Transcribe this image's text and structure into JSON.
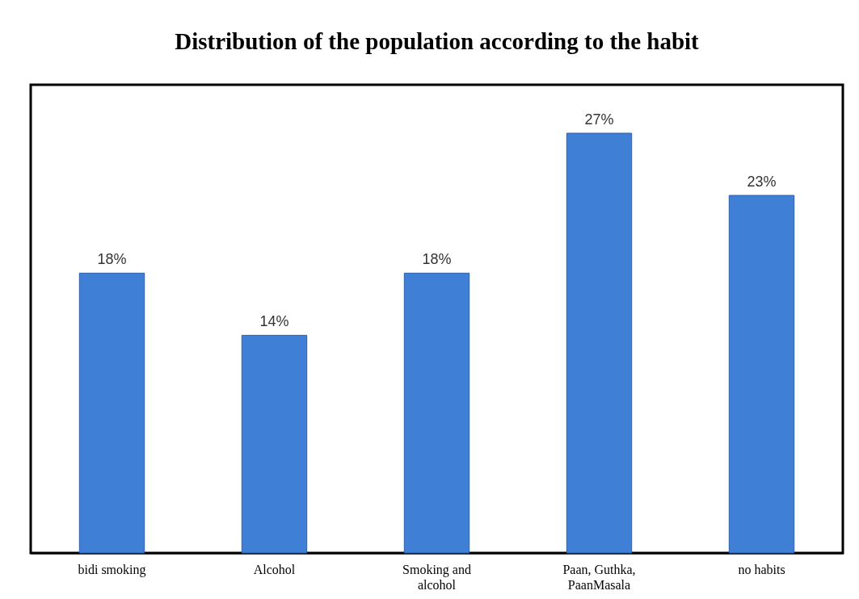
{
  "chart_data": {
    "type": "bar",
    "title": "Distribution of the population according to the habit",
    "categories": [
      "bidi smoking",
      "Alcohol",
      "Smoking and alcohol",
      "Paan, Guthka, PaanMasala",
      "no habits"
    ],
    "values": [
      18,
      14,
      18,
      27,
      23
    ],
    "value_labels": [
      "18%",
      "14%",
      "18%",
      "27%",
      "23%"
    ],
    "color": "#3f7fd6"
  }
}
